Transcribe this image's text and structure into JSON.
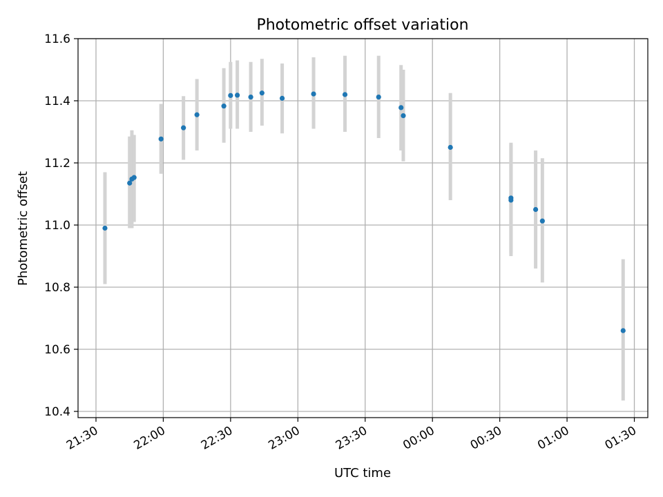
{
  "chart_data": {
    "type": "scatter",
    "title": "Photometric offset variation",
    "xlabel": "UTC time",
    "ylabel": "Photometric offset",
    "x_unit": "UTC time",
    "xlim": [
      "21:22",
      "01:36"
    ],
    "ylim": [
      10.38,
      11.6
    ],
    "x_ticks": [
      "21:30",
      "22:00",
      "22:30",
      "23:00",
      "23:30",
      "00:00",
      "00:30",
      "01:00",
      "01:30"
    ],
    "y_ticks": [
      "10.4",
      "10.6",
      "10.8",
      "11.0",
      "11.2",
      "11.4",
      "11.6"
    ],
    "grid": true,
    "colors": {
      "points": "#1f77b4",
      "error_bars": "#d3d3d3",
      "grid": "#b0b0b0"
    },
    "points": [
      {
        "x": "21:34",
        "y": 10.99,
        "yerr_low": 10.81,
        "yerr_high": 11.17
      },
      {
        "x": "21:45",
        "y": 11.135,
        "yerr_low": 10.99,
        "yerr_high": 11.285
      },
      {
        "x": "21:46",
        "y": 11.148,
        "yerr_low": 10.99,
        "yerr_high": 11.305
      },
      {
        "x": "21:47",
        "y": 11.153,
        "yerr_low": 11.01,
        "yerr_high": 11.29
      },
      {
        "x": "21:59",
        "y": 11.277,
        "yerr_low": 11.165,
        "yerr_high": 11.39
      },
      {
        "x": "22:09",
        "y": 11.313,
        "yerr_low": 11.21,
        "yerr_high": 11.415
      },
      {
        "x": "22:15",
        "y": 11.355,
        "yerr_low": 11.24,
        "yerr_high": 11.47
      },
      {
        "x": "22:27",
        "y": 11.383,
        "yerr_low": 11.265,
        "yerr_high": 11.505
      },
      {
        "x": "22:30",
        "y": 11.417,
        "yerr_low": 11.31,
        "yerr_high": 11.525
      },
      {
        "x": "22:33",
        "y": 11.418,
        "yerr_low": 11.31,
        "yerr_high": 11.53
      },
      {
        "x": "22:39",
        "y": 11.412,
        "yerr_low": 11.3,
        "yerr_high": 11.525
      },
      {
        "x": "22:44",
        "y": 11.425,
        "yerr_low": 11.32,
        "yerr_high": 11.535
      },
      {
        "x": "22:53",
        "y": 11.408,
        "yerr_low": 11.295,
        "yerr_high": 11.52
      },
      {
        "x": "23:07",
        "y": 11.422,
        "yerr_low": 11.31,
        "yerr_high": 11.54
      },
      {
        "x": "23:21",
        "y": 11.42,
        "yerr_low": 11.3,
        "yerr_high": 11.545
      },
      {
        "x": "23:36",
        "y": 11.412,
        "yerr_low": 11.28,
        "yerr_high": 11.545
      },
      {
        "x": "23:46",
        "y": 11.378,
        "yerr_low": 11.24,
        "yerr_high": 11.515
      },
      {
        "x": "23:47",
        "y": 11.352,
        "yerr_low": 11.205,
        "yerr_high": 11.5
      },
      {
        "x": "00:08",
        "y": 11.25,
        "yerr_low": 11.08,
        "yerr_high": 11.425
      },
      {
        "x": "00:35",
        "y": 11.08,
        "yerr_low": 10.9,
        "yerr_high": 11.26
      },
      {
        "x": "00:35",
        "y": 11.087,
        "yerr_low": 10.91,
        "yerr_high": 11.265
      },
      {
        "x": "00:46",
        "y": 11.05,
        "yerr_low": 10.86,
        "yerr_high": 11.24
      },
      {
        "x": "00:49",
        "y": 11.013,
        "yerr_low": 10.815,
        "yerr_high": 11.215
      },
      {
        "x": "01:25",
        "y": 10.66,
        "yerr_low": 10.435,
        "yerr_high": 10.89
      }
    ]
  }
}
